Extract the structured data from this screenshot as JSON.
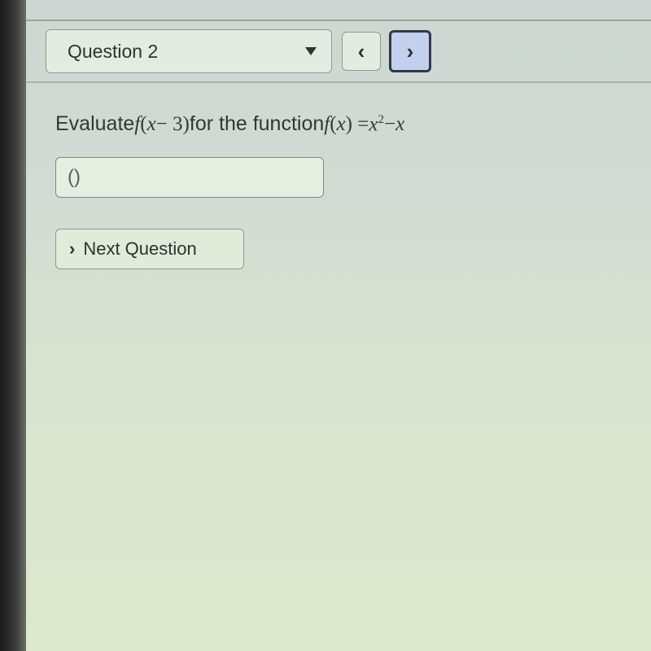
{
  "nav": {
    "dropdown_label": "Question 2",
    "prev_symbol": "‹",
    "next_symbol": "›"
  },
  "question": {
    "t1": "Evaluate ",
    "m1a": "f",
    "m1b": "(",
    "m1c": "x",
    "m1d": " − 3)",
    "t2": " for the function ",
    "m2a": "f",
    "m2b": "(",
    "m2c": "x",
    "m2d": ") = ",
    "m2e": "x",
    "m2sup": "2",
    "m2f": " − ",
    "m2g": "x"
  },
  "answer": {
    "value": "()"
  },
  "buttons": {
    "next_chevron": "›",
    "next_label": "Next Question"
  }
}
